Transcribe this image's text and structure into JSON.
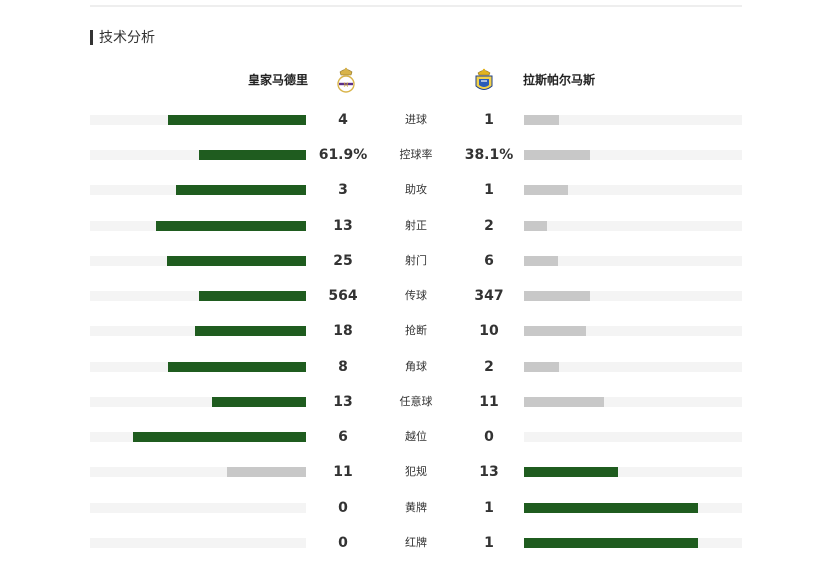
{
  "section": {
    "title": "技术分析"
  },
  "teams": {
    "home": {
      "name": "皇家马德里",
      "crest_icon": "real-madrid-crest-icon"
    },
    "away": {
      "name": "拉斯帕尔马斯",
      "crest_icon": "las-palmas-crest-icon"
    }
  },
  "colors": {
    "leading_bar": "#1f5c1f",
    "trailing_bar": "#c8c8c8",
    "track": "#f4f4f4"
  },
  "stats": [
    {
      "label": "进球",
      "home": "4",
      "away": "1"
    },
    {
      "label": "控球率",
      "home": "61.9%",
      "away": "38.1%"
    },
    {
      "label": "助攻",
      "home": "3",
      "away": "1"
    },
    {
      "label": "射正",
      "home": "13",
      "away": "2"
    },
    {
      "label": "射门",
      "home": "25",
      "away": "6"
    },
    {
      "label": "传球",
      "home": "564",
      "away": "347"
    },
    {
      "label": "抢断",
      "home": "18",
      "away": "10"
    },
    {
      "label": "角球",
      "home": "8",
      "away": "2"
    },
    {
      "label": "任意球",
      "home": "13",
      "away": "11"
    },
    {
      "label": "越位",
      "home": "6",
      "away": "0"
    },
    {
      "label": "犯规",
      "home": "11",
      "away": "13"
    },
    {
      "label": "黄牌",
      "home": "0",
      "away": "1"
    },
    {
      "label": "红牌",
      "home": "0",
      "away": "1"
    }
  ]
}
